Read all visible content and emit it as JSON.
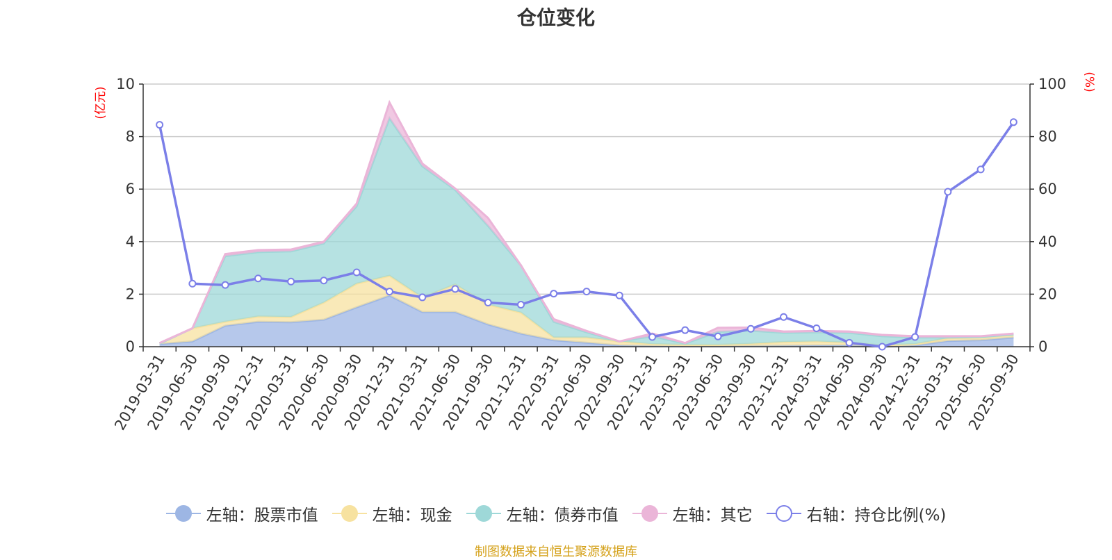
{
  "chart_data": {
    "type": "area",
    "title": "仓位变化",
    "categories": [
      "2019-03-31",
      "2019-06-30",
      "2019-09-30",
      "2019-12-31",
      "2020-03-31",
      "2020-06-30",
      "2020-09-30",
      "2020-12-31",
      "2021-03-31",
      "2021-06-30",
      "2021-09-30",
      "2021-12-31",
      "2022-03-31",
      "2022-06-30",
      "2022-09-30",
      "2022-12-31",
      "2023-03-31",
      "2023-06-30",
      "2023-09-30",
      "2023-12-31",
      "2024-03-31",
      "2024-06-30",
      "2024-09-30",
      "2024-12-31",
      "2025-03-31",
      "2025-06-30",
      "2025-09-30"
    ],
    "y_left": {
      "unit": "(亿元)",
      "min": 0,
      "max": 10,
      "ticks": [
        "0",
        "2",
        "4",
        "6",
        "8",
        "10"
      ]
    },
    "y_right": {
      "unit": "(%)",
      "min": 0,
      "max": 100,
      "ticks": [
        "0",
        "20",
        "40",
        "60",
        "80",
        "100"
      ]
    },
    "stacked_series": [
      {
        "name": "左轴：股票市值",
        "color": "#9db6e4",
        "values": [
          0.1,
          0.2,
          0.8,
          0.95,
          0.93,
          1.03,
          1.5,
          1.95,
          1.32,
          1.32,
          0.85,
          0.5,
          0.25,
          0.15,
          0.05,
          0.03,
          0.02,
          0.02,
          0.03,
          0.04,
          0.05,
          0.05,
          0.0,
          0.05,
          0.22,
          0.25,
          0.35
        ]
      },
      {
        "name": "左轴：现金",
        "color": "#f7e2a0",
        "values": [
          0.02,
          0.5,
          0.15,
          0.2,
          0.2,
          0.65,
          0.9,
          0.75,
          0.55,
          1.05,
          0.75,
          0.8,
          0.1,
          0.2,
          0.15,
          0.07,
          0.05,
          0.05,
          0.08,
          0.14,
          0.15,
          0.1,
          0.05,
          0.05,
          0.1,
          0.1,
          0.1
        ]
      },
      {
        "name": "左轴：债券市值",
        "color": "#9ed8d8",
        "values": [
          0.0,
          0.0,
          2.5,
          2.45,
          2.5,
          2.25,
          2.95,
          6.0,
          5.0,
          3.6,
          3.0,
          1.8,
          0.6,
          0.2,
          0.0,
          0.3,
          0.05,
          0.5,
          0.5,
          0.35,
          0.35,
          0.38,
          0.35,
          0.25,
          0.03,
          0.02,
          0.02
        ]
      },
      {
        "name": "左轴：其它",
        "color": "#ebb5d8",
        "values": [
          0.02,
          0.0,
          0.08,
          0.08,
          0.07,
          0.07,
          0.1,
          0.6,
          0.1,
          0.05,
          0.3,
          0.0,
          0.1,
          0.05,
          0.0,
          0.1,
          0.02,
          0.15,
          0.12,
          0.05,
          0.05,
          0.05,
          0.05,
          0.05,
          0.05,
          0.03,
          0.03
        ]
      }
    ],
    "line_series": {
      "name": "右轴：持仓比例(%)",
      "color": "#7b7fe8",
      "values": [
        84.5,
        24,
        23.5,
        26,
        24.8,
        25.2,
        28.3,
        21,
        18.8,
        22,
        16.8,
        16,
        20.2,
        21,
        19.5,
        3.7,
        6.3,
        3.9,
        6.8,
        11.3,
        7,
        1.5,
        0,
        3.7,
        59,
        67.5,
        85.5
      ]
    },
    "grid": true,
    "legend_position": "bottom",
    "source": "制图数据来自恒生聚源数据库"
  }
}
